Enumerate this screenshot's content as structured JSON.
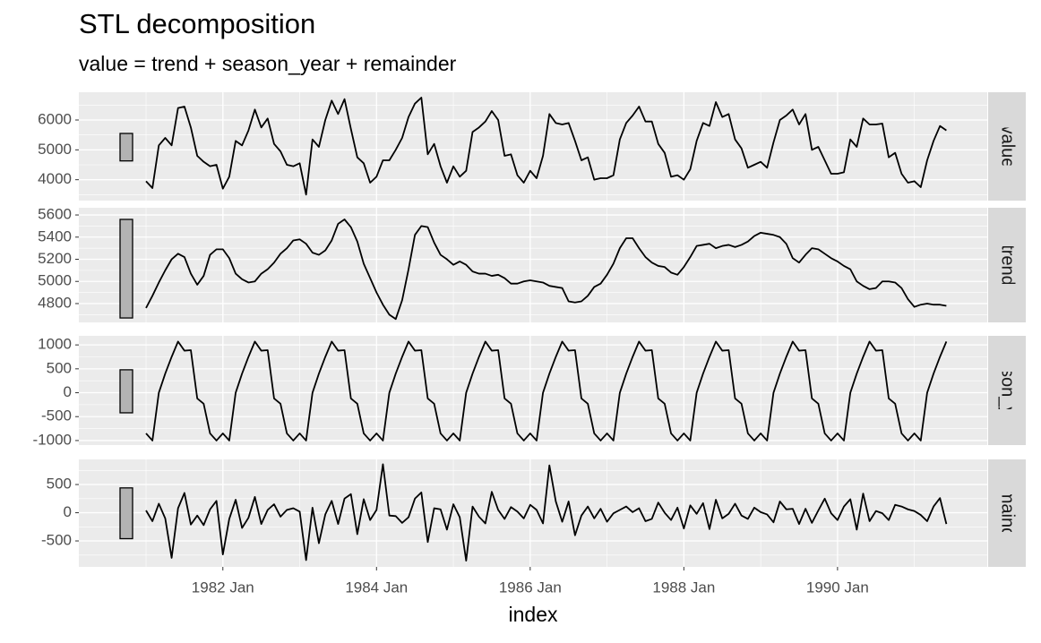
{
  "chart_data": {
    "type": "line",
    "title": "STL decomposition",
    "subtitle": "value = trend + season_year + remainder",
    "x_label": "index",
    "x": [
      "1981 Jan",
      "1981 Feb",
      "1981 Mar",
      "1981 Apr",
      "1981 May",
      "1981 Jun",
      "1981 Jul",
      "1981 Aug",
      "1981 Sep",
      "1981 Oct",
      "1981 Nov",
      "1981 Dec",
      "1982 Jan",
      "1982 Feb",
      "1982 Mar",
      "1982 Apr",
      "1982 May",
      "1982 Jun",
      "1982 Jul",
      "1982 Aug",
      "1982 Sep",
      "1982 Oct",
      "1982 Nov",
      "1982 Dec",
      "1983 Jan",
      "1983 Feb",
      "1983 Mar",
      "1983 Apr",
      "1983 May",
      "1983 Jun",
      "1983 Jul",
      "1983 Aug",
      "1983 Sep",
      "1983 Oct",
      "1983 Nov",
      "1983 Dec",
      "1984 Jan",
      "1984 Feb",
      "1984 Mar",
      "1984 Apr",
      "1984 May",
      "1984 Jun",
      "1984 Jul",
      "1984 Aug",
      "1984 Sep",
      "1984 Oct",
      "1984 Nov",
      "1984 Dec",
      "1985 Jan",
      "1985 Feb",
      "1985 Mar",
      "1985 Apr",
      "1985 May",
      "1985 Jun",
      "1985 Jul",
      "1985 Aug",
      "1985 Sep",
      "1985 Oct",
      "1985 Nov",
      "1985 Dec",
      "1986 Jan",
      "1986 Feb",
      "1986 Mar",
      "1986 Apr",
      "1986 May",
      "1986 Jun",
      "1986 Jul",
      "1986 Aug",
      "1986 Sep",
      "1986 Oct",
      "1986 Nov",
      "1986 Dec",
      "1987 Jan",
      "1987 Feb",
      "1987 Mar",
      "1987 Apr",
      "1987 May",
      "1987 Jun",
      "1987 Jul",
      "1987 Aug",
      "1987 Sep",
      "1987 Oct",
      "1987 Nov",
      "1987 Dec",
      "1988 Jan",
      "1988 Feb",
      "1988 Mar",
      "1988 Apr",
      "1988 May",
      "1988 Jun",
      "1988 Jul",
      "1988 Aug",
      "1988 Sep",
      "1988 Oct",
      "1988 Nov",
      "1988 Dec",
      "1989 Jan",
      "1989 Feb",
      "1989 Mar",
      "1989 Apr",
      "1989 May",
      "1989 Jun",
      "1989 Jul",
      "1989 Aug",
      "1989 Sep",
      "1989 Oct",
      "1989 Nov",
      "1989 Dec",
      "1990 Jan",
      "1990 Feb",
      "1990 Mar",
      "1990 Apr",
      "1990 May",
      "1990 Jun",
      "1990 Jul",
      "1990 Aug",
      "1990 Sep",
      "1990 Oct",
      "1990 Nov",
      "1990 Dec",
      "1991 Jan",
      "1991 Feb",
      "1991 Mar",
      "1991 Apr",
      "1991 May",
      "1991 Jun"
    ],
    "xticks": [
      "1982 Jan",
      "1984 Jan",
      "1986 Jan",
      "1988 Jan",
      "1990 Jan"
    ],
    "grid": true,
    "color": "#000000",
    "panels": [
      {
        "strip": "value",
        "ylim": [
          3300,
          6930
        ],
        "yticks": [
          4000,
          5000,
          6000
        ],
        "range_bar": [
          4630,
          5550
        ],
        "values": [
          3950,
          3720,
          5150,
          5400,
          5150,
          6400,
          6450,
          5750,
          4800,
          4600,
          4450,
          4500,
          3700,
          4100,
          5300,
          5150,
          5650,
          6350,
          5750,
          6050,
          5200,
          4950,
          4500,
          4450,
          4550,
          3500,
          5350,
          5100,
          6000,
          6650,
          6200,
          6700,
          5700,
          4750,
          4550,
          3900,
          4100,
          4650,
          4650,
          5000,
          5400,
          6100,
          6550,
          6750,
          4850,
          5200,
          4450,
          3900,
          4450,
          4100,
          4300,
          5600,
          5750,
          5950,
          6300,
          6000,
          4800,
          4850,
          4150,
          3900,
          4300,
          4050,
          4800,
          6200,
          5900,
          5850,
          5900,
          5300,
          4650,
          4750,
          4000,
          4050,
          4050,
          4150,
          5350,
          5900,
          6150,
          6450,
          5950,
          5950,
          5200,
          4900,
          4100,
          4150,
          4000,
          4350,
          5300,
          5900,
          5800,
          6600,
          6100,
          6200,
          5350,
          5050,
          4400,
          4500,
          4600,
          4400,
          5250,
          6000,
          6150,
          6350,
          5850,
          6200,
          5000,
          5100,
          4650,
          4200,
          4200,
          4250,
          5350,
          5100,
          6050,
          5850,
          5850,
          5880,
          4750,
          4900,
          4200,
          3900,
          3950,
          3750,
          4650,
          5300,
          5800,
          5650
        ]
      },
      {
        "strip": "trend",
        "ylim": [
          4630,
          5665
        ],
        "yticks": [
          4800,
          5000,
          5200,
          5400,
          5600
        ],
        "range_bar": [
          4670,
          5560
        ],
        "values": [
          4760,
          4870,
          4990,
          5100,
          5200,
          5250,
          5220,
          5070,
          4970,
          5050,
          5240,
          5290,
          5290,
          5210,
          5070,
          5020,
          4990,
          5000,
          5070,
          5110,
          5170,
          5250,
          5300,
          5370,
          5380,
          5340,
          5260,
          5240,
          5280,
          5370,
          5520,
          5560,
          5490,
          5360,
          5160,
          5030,
          4900,
          4790,
          4700,
          4660,
          4830,
          5110,
          5420,
          5500,
          5490,
          5350,
          5240,
          5200,
          5150,
          5180,
          5150,
          5090,
          5070,
          5070,
          5050,
          5060,
          5030,
          4980,
          4980,
          5000,
          5010,
          5000,
          4990,
          4960,
          4950,
          4940,
          4820,
          4810,
          4820,
          4870,
          4950,
          4980,
          5060,
          5160,
          5300,
          5390,
          5390,
          5300,
          5220,
          5170,
          5140,
          5130,
          5080,
          5060,
          5130,
          5220,
          5320,
          5330,
          5340,
          5300,
          5320,
          5330,
          5310,
          5330,
          5360,
          5410,
          5440,
          5430,
          5420,
          5400,
          5340,
          5210,
          5170,
          5240,
          5300,
          5290,
          5250,
          5210,
          5180,
          5140,
          5110,
          5000,
          4960,
          4930,
          4940,
          5000,
          5000,
          4990,
          4940,
          4840,
          4770,
          4790,
          4800,
          4790,
          4790,
          4780
        ]
      },
      {
        "strip": "season_year",
        "ylim": [
          -1095,
          1190
        ],
        "yticks": [
          -1000,
          -500,
          0,
          500,
          1000
        ],
        "range_bar": [
          -420,
          480
        ],
        "values": [
          -850,
          -1000,
          0,
          400,
          750,
          1070,
          880,
          890,
          -120,
          -230,
          -850,
          -1000,
          -850,
          -1000,
          0,
          400,
          750,
          1070,
          880,
          890,
          -120,
          -230,
          -850,
          -1000,
          -850,
          -1000,
          0,
          400,
          750,
          1070,
          880,
          890,
          -120,
          -230,
          -850,
          -1000,
          -850,
          -1000,
          0,
          400,
          750,
          1070,
          880,
          890,
          -120,
          -230,
          -850,
          -1000,
          -850,
          -1000,
          0,
          400,
          750,
          1070,
          880,
          890,
          -120,
          -230,
          -850,
          -1000,
          -850,
          -1000,
          0,
          400,
          750,
          1070,
          880,
          890,
          -120,
          -230,
          -850,
          -1000,
          -850,
          -1000,
          0,
          400,
          750,
          1070,
          880,
          890,
          -120,
          -230,
          -850,
          -1000,
          -850,
          -1000,
          0,
          400,
          750,
          1070,
          880,
          890,
          -120,
          -230,
          -850,
          -1000,
          -850,
          -1000,
          0,
          400,
          750,
          1070,
          880,
          890,
          -120,
          -230,
          -850,
          -1000,
          -850,
          -1000,
          0,
          400,
          750,
          1070,
          880,
          890,
          -120,
          -230,
          -850,
          -1000,
          -850,
          -1000,
          0,
          400,
          750,
          1070
        ]
      },
      {
        "strip": "remainder",
        "ylim": [
          -960,
          945
        ],
        "yticks": [
          -500,
          0,
          500
        ],
        "range_bar": [
          -460,
          440
        ],
        "values": [
          40,
          -150,
          160,
          -100,
          -800,
          80,
          350,
          -210,
          -50,
          -220,
          60,
          210,
          -740,
          -110,
          230,
          -270,
          -90,
          280,
          -200,
          50,
          150,
          -70,
          50,
          80,
          20,
          -840,
          90,
          -540,
          -30,
          210,
          -200,
          250,
          330,
          -380,
          240,
          -130,
          50,
          860,
          -50,
          -60,
          -180,
          -80,
          250,
          360,
          -520,
          80,
          60,
          -300,
          150,
          -80,
          -850,
          110,
          -70,
          -190,
          370,
          50,
          -110,
          100,
          20,
          -100,
          140,
          50,
          -190,
          840,
          200,
          -160,
          200,
          -400,
          -50,
          110,
          -100,
          70,
          -160,
          -10,
          50,
          110,
          10,
          80,
          -150,
          -110,
          180,
          0,
          -130,
          90,
          -280,
          130,
          -20,
          170,
          -290,
          230,
          -100,
          -20,
          160,
          -50,
          -110,
          90,
          10,
          -30,
          -170,
          200,
          60,
          70,
          -200,
          70,
          -180,
          40,
          250,
          -10,
          -130,
          110,
          240,
          -300,
          340,
          -150,
          30,
          -10,
          -130,
          140,
          110,
          60,
          30,
          -40,
          -150,
          110,
          260,
          -200
        ]
      }
    ]
  }
}
